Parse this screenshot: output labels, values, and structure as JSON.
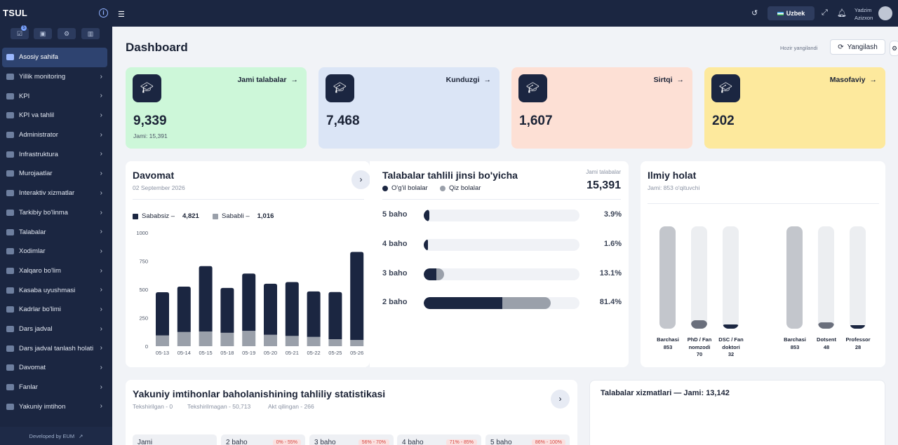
{
  "app": {
    "logo": "TSUL",
    "footer": "Developed by EUM"
  },
  "sidebar": {
    "quick_badge": "5",
    "items": [
      {
        "label": "Asosiy sahifa",
        "active": true
      },
      {
        "label": "Yillik monitoring"
      },
      {
        "label": "KPI"
      },
      {
        "label": "KPI va tahlil"
      },
      {
        "label": "Administrator"
      },
      {
        "label": "Infrastruktura"
      },
      {
        "label": "Murojaatlar"
      },
      {
        "label": "Interaktiv xizmatlar"
      },
      {
        "label": "Tarkibiy bo'linma"
      },
      {
        "label": "Talabalar"
      },
      {
        "label": "Xodimlar"
      },
      {
        "label": "Xalqaro bo'lim"
      },
      {
        "label": "Kasaba uyushmasi"
      },
      {
        "label": "Kadrlar bo'limi"
      },
      {
        "label": "Dars jadval"
      },
      {
        "label": "Dars jadval tanlash holati"
      },
      {
        "label": "Davomat"
      },
      {
        "label": "Fanlar"
      },
      {
        "label": "Yakuniy imtihon"
      }
    ]
  },
  "topbar": {
    "language": "Uzbek",
    "user_first": "Yadzim",
    "user_last": "Azizxon"
  },
  "header": {
    "title": "Dashboard",
    "updated": "Hozir yangilandi",
    "refresh": "Yangilash"
  },
  "cards": [
    {
      "title": "Jami talabalar",
      "value": "9,339",
      "sub": "Jami: 15,391",
      "color": "#cdf7d9"
    },
    {
      "title": "Kunduzgi",
      "value": "7,468",
      "sub": "",
      "color": "#dbe5f6"
    },
    {
      "title": "Sirtqi",
      "value": "1,607",
      "sub": "",
      "color": "#fde0d5"
    },
    {
      "title": "Masofaviy",
      "value": "202",
      "sub": "",
      "color": "#fde99d"
    }
  ],
  "davomat": {
    "title": "Davomat",
    "date": "02 September 2026",
    "legend_a": "Sababsiz –",
    "legend_a_val": "4,821",
    "legend_b": "Sababli –",
    "legend_b_val": "1,016",
    "chart_data": {
      "type": "bar",
      "categories": [
        "05-13",
        "05-14",
        "05-15",
        "05-18",
        "05-19",
        "05-20",
        "05-21",
        "05-22",
        "05-25",
        "05-26"
      ],
      "series": [
        {
          "name": "Sababsiz",
          "values": [
            380,
            400,
            575,
            395,
            505,
            450,
            475,
            400,
            415,
            775
          ]
        },
        {
          "name": "Sababli",
          "values": [
            95,
            125,
            130,
            118,
            135,
            100,
            90,
            82,
            62,
            55
          ]
        }
      ],
      "yticks": [
        "1000",
        "750",
        "500",
        "250",
        "0"
      ],
      "ylim": [
        0,
        1000
      ],
      "colors": [
        "#1b2641",
        "#9aa0aa"
      ]
    }
  },
  "gender": {
    "title": "Talabalar tahlili jinsi bo'yicha",
    "boys": "O'g'il bolalar",
    "girls": "Qiz bolalar",
    "total_label": "Jami talabalar",
    "total": "15,391",
    "rows": [
      {
        "label": "5 baho",
        "pct": "3.9%",
        "boys": 0.035,
        "girls": 0.0
      },
      {
        "label": "4 baho",
        "pct": "1.6%",
        "boys": 0.02,
        "girls": 0.0
      },
      {
        "label": "3 baho",
        "pct": "13.1%",
        "boys": 0.08,
        "girls": 0.05
      },
      {
        "label": "2 baho",
        "pct": "81.4%",
        "boys": 0.505,
        "girls": 0.31
      }
    ]
  },
  "ilmiy": {
    "title": "Ilmiy holat",
    "sub": "Jami: 853 o'qituvchi",
    "bars": [
      {
        "label": "Barchasi",
        "value": "853",
        "fill": 1.0
      },
      {
        "label": "PhD / Fan nomzodi",
        "value": "70",
        "fill": 0.08
      },
      {
        "label": "DSC / Fan doktori",
        "value": "32",
        "fill": 0.04
      },
      {
        "label": "Barchasi",
        "value": "853",
        "fill": 1.0
      },
      {
        "label": "Dotsent",
        "value": "48",
        "fill": 0.06
      },
      {
        "label": "Professor",
        "value": "28",
        "fill": 0.035
      }
    ]
  },
  "exams": {
    "title": "Yakuniy imtihonlar baholanishining tahliliy statistikasi",
    "stat1": "Tekshirilgan - 0",
    "stat2": "Tekshirilmagan - 50,713",
    "stat3": "Akt qilingan - 266",
    "cells": [
      {
        "label": "Jami",
        "tag": ""
      },
      {
        "label": "2 baho",
        "tag": "0% - 55%"
      },
      {
        "label": "3 baho",
        "tag": "56% - 70%"
      },
      {
        "label": "4 baho",
        "tag": "71% - 85%"
      },
      {
        "label": "5 baho",
        "tag": "86% - 100%"
      }
    ]
  },
  "services": {
    "title": "Talabalar xizmatlari — Jami: 13,142"
  }
}
